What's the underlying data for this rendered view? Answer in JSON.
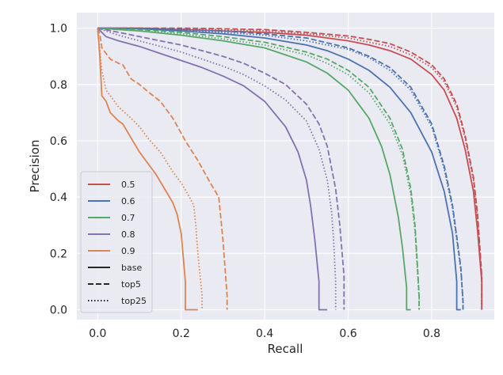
{
  "chart_data": {
    "type": "line",
    "title": "",
    "xlabel": "Recall",
    "ylabel": "Precision",
    "xlim": [
      -0.05,
      0.95
    ],
    "ylim": [
      -0.035,
      1.055
    ],
    "xticks": [
      0.0,
      0.2,
      0.4,
      0.6,
      0.8
    ],
    "yticks": [
      0.0,
      0.2,
      0.4,
      0.6,
      0.8,
      1.0
    ],
    "xtick_labels": [
      "0.0",
      "0.2",
      "0.4",
      "0.6",
      "0.8"
    ],
    "ytick_labels": [
      "0.0",
      "0.2",
      "0.4",
      "0.6",
      "0.8",
      "1.0"
    ],
    "grid": true,
    "background": "#eaeaf2",
    "legend_position": "lower-left",
    "legend": [
      {
        "label": "0.5",
        "kind": "color",
        "color": "#c44e52"
      },
      {
        "label": "0.6",
        "kind": "color",
        "color": "#4c72b0"
      },
      {
        "label": "0.7",
        "kind": "color",
        "color": "#55a868"
      },
      {
        "label": "0.8",
        "kind": "color",
        "color": "#8172b2"
      },
      {
        "label": "0.9",
        "kind": "color",
        "color": "#dd8452"
      },
      {
        "label": "base",
        "kind": "style",
        "style": "solid"
      },
      {
        "label": "top5",
        "kind": "style",
        "style": "dashed"
      },
      {
        "label": "top25",
        "kind": "style",
        "style": "dotted"
      }
    ],
    "series": [
      {
        "name": "0.5 base",
        "threshold": "0.5",
        "variant": "base",
        "color": "#c44e52",
        "style": "solid",
        "x": [
          0,
          0.1,
          0.2,
          0.3,
          0.4,
          0.5,
          0.6,
          0.65,
          0.7,
          0.75,
          0.8,
          0.83,
          0.86,
          0.88,
          0.9,
          0.91,
          0.92,
          0.92
        ],
        "y": [
          1.0,
          1.0,
          0.995,
          0.99,
          0.985,
          0.975,
          0.955,
          0.94,
          0.92,
          0.89,
          0.835,
          0.78,
          0.68,
          0.57,
          0.42,
          0.28,
          0.1,
          0.0
        ]
      },
      {
        "name": "0.5 top5",
        "threshold": "0.5",
        "variant": "top5",
        "color": "#c44e52",
        "style": "dashed",
        "x": [
          0,
          0.1,
          0.2,
          0.3,
          0.4,
          0.5,
          0.6,
          0.65,
          0.7,
          0.75,
          0.8,
          0.83,
          0.86,
          0.88,
          0.9,
          0.91,
          0.92,
          0.92
        ],
        "y": [
          1.0,
          1.0,
          1.0,
          0.998,
          0.995,
          0.985,
          0.972,
          0.96,
          0.945,
          0.915,
          0.87,
          0.82,
          0.73,
          0.62,
          0.47,
          0.34,
          0.12,
          0.0
        ]
      },
      {
        "name": "0.5 top25",
        "threshold": "0.5",
        "variant": "top25",
        "color": "#c44e52",
        "style": "dotted",
        "x": [
          0,
          0.1,
          0.2,
          0.3,
          0.4,
          0.5,
          0.6,
          0.65,
          0.7,
          0.75,
          0.8,
          0.83,
          0.86,
          0.88,
          0.9,
          0.91,
          0.92,
          0.92
        ],
        "y": [
          1.0,
          1.0,
          0.998,
          0.995,
          0.99,
          0.98,
          0.965,
          0.95,
          0.935,
          0.905,
          0.86,
          0.81,
          0.72,
          0.61,
          0.46,
          0.32,
          0.11,
          0.0
        ]
      },
      {
        "name": "0.6 base",
        "threshold": "0.6",
        "variant": "base",
        "color": "#4c72b0",
        "style": "solid",
        "x": [
          0,
          0.1,
          0.2,
          0.3,
          0.4,
          0.5,
          0.55,
          0.6,
          0.65,
          0.7,
          0.75,
          0.8,
          0.83,
          0.85,
          0.86,
          0.86,
          0.87
        ],
        "y": [
          1.0,
          0.998,
          0.99,
          0.98,
          0.965,
          0.94,
          0.92,
          0.89,
          0.85,
          0.79,
          0.7,
          0.56,
          0.42,
          0.27,
          0.1,
          0.0,
          0.0
        ]
      },
      {
        "name": "0.6 top5",
        "threshold": "0.6",
        "variant": "top5",
        "color": "#4c72b0",
        "style": "dashed",
        "x": [
          0,
          0.1,
          0.2,
          0.3,
          0.4,
          0.5,
          0.6,
          0.65,
          0.7,
          0.75,
          0.8,
          0.83,
          0.85,
          0.87,
          0.875,
          0.875
        ],
        "y": [
          1.0,
          0.999,
          0.995,
          0.99,
          0.98,
          0.965,
          0.93,
          0.9,
          0.86,
          0.79,
          0.66,
          0.51,
          0.37,
          0.15,
          0.03,
          0.0
        ]
      },
      {
        "name": "0.6 top25",
        "threshold": "0.6",
        "variant": "top25",
        "color": "#4c72b0",
        "style": "dotted",
        "x": [
          0,
          0.1,
          0.2,
          0.3,
          0.4,
          0.5,
          0.6,
          0.65,
          0.7,
          0.75,
          0.8,
          0.83,
          0.85,
          0.87,
          0.875,
          0.875
        ],
        "y": [
          1.0,
          0.999,
          0.993,
          0.985,
          0.975,
          0.955,
          0.925,
          0.895,
          0.85,
          0.78,
          0.65,
          0.5,
          0.36,
          0.14,
          0.03,
          0.0
        ]
      },
      {
        "name": "0.7 base",
        "threshold": "0.7",
        "variant": "base",
        "color": "#55a868",
        "style": "solid",
        "x": [
          0,
          0.1,
          0.2,
          0.3,
          0.4,
          0.5,
          0.55,
          0.6,
          0.65,
          0.68,
          0.7,
          0.72,
          0.73,
          0.74,
          0.74,
          0.75
        ],
        "y": [
          1.0,
          0.99,
          0.975,
          0.955,
          0.93,
          0.88,
          0.84,
          0.78,
          0.68,
          0.58,
          0.48,
          0.33,
          0.22,
          0.08,
          0.0,
          0.0
        ]
      },
      {
        "name": "0.7 top5",
        "threshold": "0.7",
        "variant": "top5",
        "color": "#55a868",
        "style": "dashed",
        "x": [
          0,
          0.1,
          0.2,
          0.3,
          0.4,
          0.5,
          0.55,
          0.6,
          0.65,
          0.7,
          0.73,
          0.75,
          0.76,
          0.765,
          0.77,
          0.77
        ],
        "y": [
          1.0,
          0.995,
          0.985,
          0.97,
          0.95,
          0.915,
          0.89,
          0.85,
          0.79,
          0.68,
          0.57,
          0.43,
          0.3,
          0.18,
          0.05,
          0.0
        ]
      },
      {
        "name": "0.7 top25",
        "threshold": "0.7",
        "variant": "top25",
        "color": "#55a868",
        "style": "dotted",
        "x": [
          0,
          0.1,
          0.2,
          0.3,
          0.4,
          0.5,
          0.55,
          0.6,
          0.65,
          0.7,
          0.73,
          0.75,
          0.76,
          0.765,
          0.77,
          0.77
        ],
        "y": [
          1.0,
          0.99,
          0.98,
          0.962,
          0.94,
          0.905,
          0.875,
          0.835,
          0.77,
          0.66,
          0.55,
          0.41,
          0.28,
          0.16,
          0.04,
          0.0
        ]
      },
      {
        "name": "0.8 base",
        "threshold": "0.8",
        "variant": "base",
        "color": "#8172b2",
        "style": "solid",
        "x": [
          0,
          0.02,
          0.05,
          0.1,
          0.15,
          0.2,
          0.25,
          0.3,
          0.35,
          0.4,
          0.45,
          0.48,
          0.5,
          0.51,
          0.52,
          0.53,
          0.53,
          0.55
        ],
        "y": [
          1.0,
          0.97,
          0.955,
          0.935,
          0.91,
          0.885,
          0.86,
          0.83,
          0.795,
          0.74,
          0.65,
          0.56,
          0.46,
          0.37,
          0.25,
          0.1,
          0.0,
          0.0
        ]
      },
      {
        "name": "0.8 top5",
        "threshold": "0.8",
        "variant": "top5",
        "color": "#8172b2",
        "style": "dashed",
        "x": [
          0,
          0.05,
          0.1,
          0.15,
          0.2,
          0.25,
          0.3,
          0.35,
          0.4,
          0.45,
          0.5,
          0.53,
          0.55,
          0.57,
          0.58,
          0.59,
          0.59
        ],
        "y": [
          1.0,
          0.985,
          0.97,
          0.955,
          0.94,
          0.92,
          0.9,
          0.875,
          0.84,
          0.8,
          0.73,
          0.66,
          0.58,
          0.43,
          0.3,
          0.12,
          0.0
        ]
      },
      {
        "name": "0.8 top25",
        "threshold": "0.8",
        "variant": "top25",
        "color": "#8172b2",
        "style": "dotted",
        "x": [
          0,
          0.05,
          0.1,
          0.15,
          0.2,
          0.25,
          0.3,
          0.35,
          0.4,
          0.45,
          0.5,
          0.53,
          0.55,
          0.56,
          0.565,
          0.57,
          0.57
        ],
        "y": [
          1.0,
          0.975,
          0.955,
          0.935,
          0.915,
          0.89,
          0.865,
          0.835,
          0.795,
          0.745,
          0.67,
          0.57,
          0.46,
          0.35,
          0.25,
          0.1,
          0.0
        ]
      },
      {
        "name": "0.9 base",
        "threshold": "0.9",
        "variant": "base",
        "color": "#dd8452",
        "style": "solid",
        "x": [
          0,
          0.005,
          0.01,
          0.02,
          0.03,
          0.05,
          0.06,
          0.08,
          0.1,
          0.12,
          0.14,
          0.16,
          0.18,
          0.19,
          0.2,
          0.21,
          0.21,
          0.24
        ],
        "y": [
          1.0,
          0.9,
          0.76,
          0.74,
          0.7,
          0.67,
          0.66,
          0.61,
          0.56,
          0.52,
          0.48,
          0.43,
          0.38,
          0.34,
          0.27,
          0.1,
          0.0,
          0.0
        ]
      },
      {
        "name": "0.9 top5",
        "threshold": "0.9",
        "variant": "top5",
        "color": "#dd8452",
        "style": "dashed",
        "x": [
          0,
          0.005,
          0.01,
          0.02,
          0.03,
          0.05,
          0.06,
          0.08,
          0.1,
          0.12,
          0.15,
          0.18,
          0.21,
          0.24,
          0.27,
          0.29,
          0.3,
          0.31,
          0.31
        ],
        "y": [
          1.0,
          0.98,
          0.93,
          0.91,
          0.89,
          0.875,
          0.87,
          0.82,
          0.8,
          0.775,
          0.74,
          0.68,
          0.6,
          0.53,
          0.45,
          0.4,
          0.25,
          0.05,
          0.0
        ]
      },
      {
        "name": "0.9 top25",
        "threshold": "0.9",
        "variant": "top25",
        "color": "#dd8452",
        "style": "dotted",
        "x": [
          0,
          0.01,
          0.02,
          0.03,
          0.05,
          0.08,
          0.1,
          0.12,
          0.15,
          0.18,
          0.2,
          0.22,
          0.23,
          0.235,
          0.24,
          0.25,
          0.25
        ],
        "y": [
          1.0,
          0.85,
          0.78,
          0.76,
          0.72,
          0.68,
          0.65,
          0.61,
          0.56,
          0.49,
          0.45,
          0.4,
          0.37,
          0.3,
          0.2,
          0.05,
          0.0
        ]
      }
    ]
  }
}
